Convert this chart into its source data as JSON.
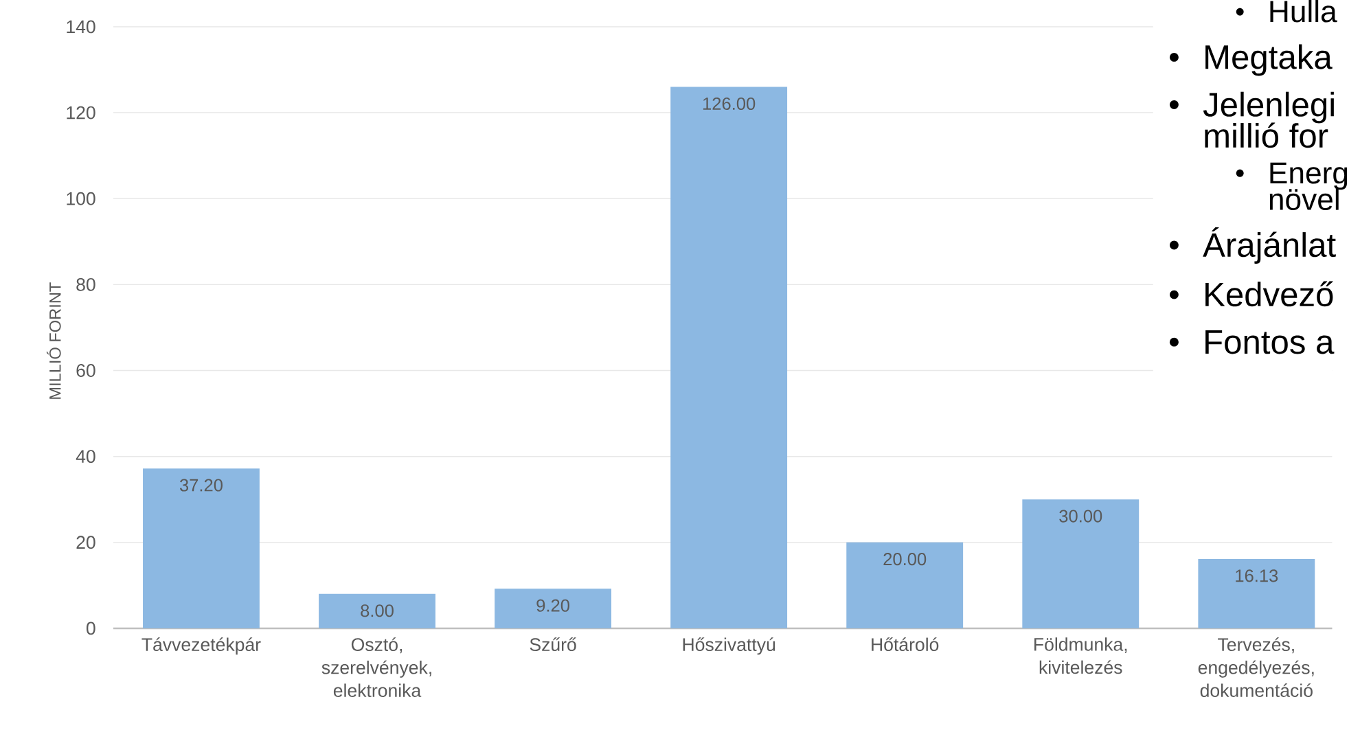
{
  "chart_data": {
    "type": "bar",
    "ylabel": "MILLIÓ FORINT",
    "categories": [
      "Távvezetékpár",
      "Osztó, szerelvények, elektronika",
      "Szűrő",
      "Hőszivattyú",
      "Hőtároló",
      "Földmunka, kivitelezés",
      "Tervezés, engedélyezés, dokumentáció"
    ],
    "values": [
      37.2,
      8.0,
      9.2,
      126.0,
      20.0,
      30.0,
      16.13
    ],
    "value_labels": [
      "37.20",
      "8.00",
      "9.20",
      "126.00",
      "20.00",
      "30.00",
      "16.13"
    ],
    "color": "#8cb8e2",
    "ylim": [
      0,
      140
    ],
    "yticks": [
      0,
      20,
      40,
      60,
      80,
      100,
      120,
      140
    ],
    "grid": "y",
    "annotations": [
      "Hulla",
      "Megtaka",
      "Jelenlegi",
      "millió for",
      "Energ",
      "növel",
      "Árajánlat",
      "Kedvező",
      "Fontos a"
    ]
  }
}
